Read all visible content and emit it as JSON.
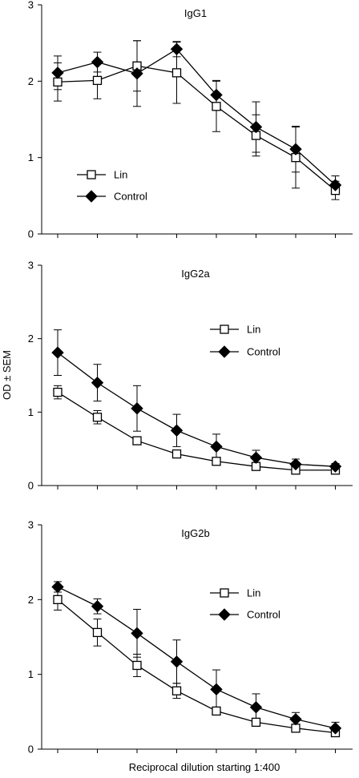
{
  "figure": {
    "ylabel": "OD ± SEM",
    "xlabel": "Reciprocal dilution starting 1:400"
  },
  "chart_data": [
    {
      "type": "line",
      "title": "IgG1",
      "ylim": [
        0,
        3
      ],
      "yticks": [
        0,
        1,
        2,
        3
      ],
      "x": [
        1,
        2,
        3,
        4,
        5,
        6,
        7,
        8
      ],
      "legend_position": "left",
      "grid": false,
      "series": [
        {
          "name": "Lin",
          "marker": "open-square",
          "color": "#000000",
          "values": [
            1.99,
            2.01,
            2.2,
            2.11,
            1.67,
            1.29,
            1.0,
            0.57
          ],
          "errors": [
            0.25,
            0.24,
            0.33,
            0.4,
            0.33,
            0.27,
            0.4,
            0.12
          ]
        },
        {
          "name": "Control",
          "marker": "filled-diamond",
          "color": "#000000",
          "values": [
            2.11,
            2.25,
            2.1,
            2.42,
            1.82,
            1.4,
            1.11,
            0.64
          ],
          "errors": [
            0.22,
            0.13,
            0.43,
            0.1,
            0.19,
            0.33,
            0.3,
            0.12
          ]
        }
      ]
    },
    {
      "type": "line",
      "title": "IgG2a",
      "ylim": [
        0,
        3
      ],
      "yticks": [
        0,
        1,
        2,
        3
      ],
      "x": [
        1,
        2,
        3,
        4,
        5,
        6,
        7,
        8
      ],
      "legend_position": "center-right",
      "grid": false,
      "series": [
        {
          "name": "Lin",
          "marker": "open-square",
          "color": "#000000",
          "values": [
            1.27,
            0.93,
            0.61,
            0.43,
            0.33,
            0.26,
            0.21,
            0.21
          ],
          "errors": [
            0.09,
            0.09,
            0.04,
            0.02,
            0.02,
            0.02,
            0.02,
            0.04
          ]
        },
        {
          "name": "Control",
          "marker": "filled-diamond",
          "color": "#000000",
          "values": [
            1.81,
            1.4,
            1.05,
            0.75,
            0.53,
            0.38,
            0.29,
            0.26
          ],
          "errors": [
            0.31,
            0.25,
            0.31,
            0.22,
            0.17,
            0.1,
            0.07,
            0.04
          ]
        }
      ]
    },
    {
      "type": "line",
      "title": "IgG2b",
      "ylim": [
        0,
        3
      ],
      "yticks": [
        0,
        1,
        2,
        3
      ],
      "x": [
        1,
        2,
        3,
        4,
        5,
        6,
        7,
        8
      ],
      "legend_position": "center-right",
      "grid": false,
      "series": [
        {
          "name": "Lin",
          "marker": "open-square",
          "color": "#000000",
          "values": [
            2.0,
            1.56,
            1.12,
            0.78,
            0.51,
            0.36,
            0.28,
            0.22
          ],
          "errors": [
            0.14,
            0.18,
            0.15,
            0.1,
            0.05,
            0.04,
            0.02,
            0.03
          ]
        },
        {
          "name": "Control",
          "marker": "filled-diamond",
          "color": "#000000",
          "values": [
            2.17,
            1.91,
            1.55,
            1.17,
            0.8,
            0.56,
            0.4,
            0.28
          ],
          "errors": [
            0.07,
            0.1,
            0.32,
            0.29,
            0.26,
            0.18,
            0.09,
            0.08
          ]
        }
      ]
    }
  ]
}
